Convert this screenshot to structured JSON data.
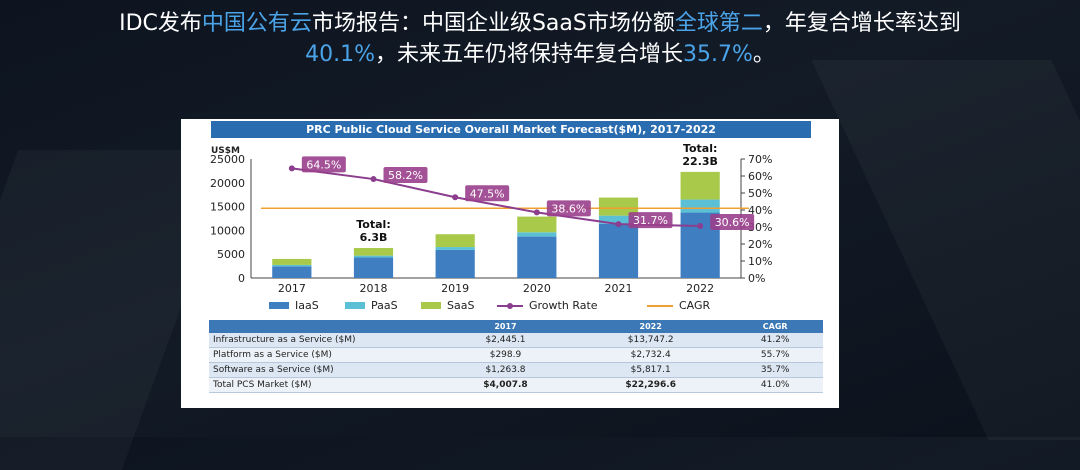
{
  "headline": {
    "p1": "IDC发布",
    "p2": "中国公有云",
    "p3": "市场报告：中国企业级SaaS市场份额",
    "p4": "全球第二",
    "p5": "，年复合增长率达到",
    "p6": "40.1%",
    "p7": "，未来五年仍将保持年复合增长",
    "p8": "35.7%",
    "p9": "。"
  },
  "chart_data": {
    "type": "bar",
    "title": "PRC Public Cloud Service Overall Market Forecast($M), 2017-2022",
    "ylabel": "US$M",
    "ylim": [
      0,
      25000
    ],
    "y_ticks": [
      "25000",
      "20000",
      "15000",
      "10000",
      "5000",
      "0"
    ],
    "y2lim": [
      0,
      70
    ],
    "y2_ticks": [
      "70%",
      "60%",
      "50%",
      "40%",
      "30%",
      "20%",
      "10%",
      "0%"
    ],
    "categories": [
      "2017",
      "2018",
      "2019",
      "2020",
      "2021",
      "2022"
    ],
    "series": [
      {
        "name": "IaaS",
        "color": "#3f7fc1",
        "values": [
          2445.1,
          4300,
          5900,
          8700,
          11400,
          13747.2
        ]
      },
      {
        "name": "PaaS",
        "color": "#5bc0d6",
        "values": [
          298.9,
          400,
          600,
          900,
          1700,
          2732.4
        ]
      },
      {
        "name": "SaaS",
        "color": "#a9c94a",
        "values": [
          1263.8,
          1600,
          2700,
          3300,
          3800,
          5817.1
        ]
      }
    ],
    "growth_rate": {
      "name": "Growth Rate",
      "color": "#8b3d8e",
      "points": [
        {
          "x": "2017",
          "y": 64.5,
          "label": "64.5%"
        },
        {
          "x": "2018",
          "y": 58.2,
          "label": "58.2%"
        },
        {
          "x": "2019",
          "y": 47.5,
          "label": "47.5%"
        },
        {
          "x": "2020",
          "y": 38.6,
          "label": "38.6%"
        },
        {
          "x": "2021",
          "y": 31.7,
          "label": "31.7%"
        },
        {
          "x": "2022",
          "y": 30.6,
          "label": "30.6%"
        }
      ]
    },
    "cagr": {
      "name": "CAGR",
      "color": "#f0a030",
      "value": 41.0
    },
    "annotations": [
      {
        "x": "2018",
        "line1": "Total:",
        "line2": "6.3B"
      },
      {
        "x": "2022",
        "line1": "Total:",
        "line2": "22.3B"
      }
    ],
    "legend_position": "bottom"
  },
  "table": {
    "headers": [
      "",
      "2017",
      "2022",
      "CAGR"
    ],
    "rows": [
      {
        "label": "Infrastructure as a Service ($M)",
        "v2017": "$2,445.1",
        "v2022": "$13,747.2",
        "cagr": "41.2%"
      },
      {
        "label": "Platform as a Service ($M)",
        "v2017": "$298.9",
        "v2022": "$2,732.4",
        "cagr": "55.7%"
      },
      {
        "label": "Software as a Service ($M)",
        "v2017": "$1,263.8",
        "v2022": "$5,817.1",
        "cagr": "35.7%"
      },
      {
        "label": "Total PCS Market ($M)",
        "v2017": "$4,007.8",
        "v2022": "$22,296.6",
        "cagr": "41.0%"
      }
    ]
  }
}
